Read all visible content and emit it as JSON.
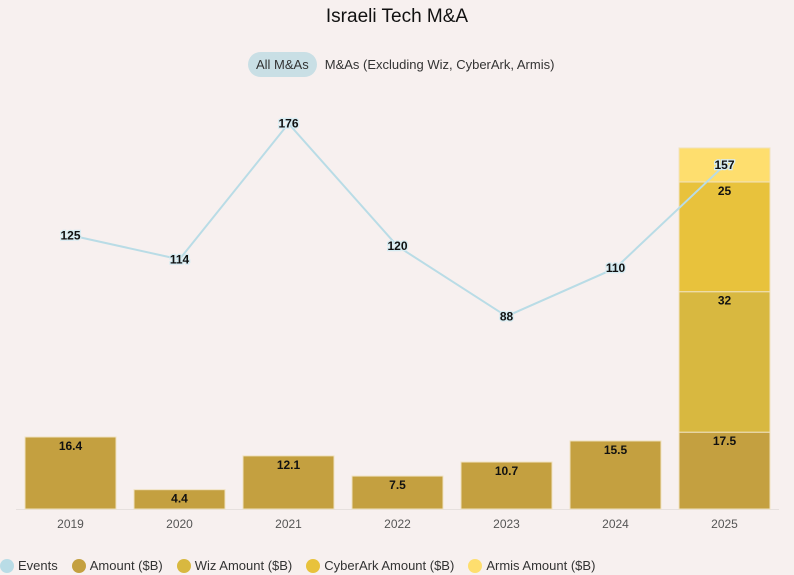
{
  "title": "Israeli Tech M&A",
  "toggle": {
    "options": [
      "All M&As",
      "M&As (Excluding Wiz, CyberArk, Armis)"
    ],
    "active": 0
  },
  "chart_data": {
    "type": "bar",
    "title": "Israeli Tech M&A",
    "categories": [
      "2019",
      "2020",
      "2021",
      "2022",
      "2023",
      "2024",
      "2025"
    ],
    "series": [
      {
        "name": "Amount ($B)",
        "type": "bar",
        "stack": true,
        "color": "#c4a040",
        "values": [
          16.4,
          4.4,
          12.1,
          7.5,
          10.7,
          15.5,
          17.5
        ],
        "labels": [
          "16.4",
          "4.4",
          "12.1",
          "7.5",
          "10.7",
          "15.5",
          "17.5"
        ]
      },
      {
        "name": "Wiz Amount ($B)",
        "type": "bar",
        "stack": true,
        "color": "#d8b840",
        "values": [
          0,
          0,
          0,
          0,
          0,
          0,
          32
        ],
        "labels": [
          "",
          "",
          "",
          "",
          "",
          "",
          "32"
        ]
      },
      {
        "name": "CyberArk Amount ($B)",
        "type": "bar",
        "stack": true,
        "color": "#e8c23c",
        "values": [
          0,
          0,
          0,
          0,
          0,
          0,
          25
        ],
        "labels": [
          "",
          "",
          "",
          "",
          "",
          "",
          "25"
        ]
      },
      {
        "name": "Armis Amount ($B)",
        "type": "bar",
        "stack": true,
        "color": "#fede6e",
        "values": [
          0,
          0,
          0,
          0,
          0,
          0,
          7.75
        ],
        "labels": [
          "",
          "",
          "",
          "",
          "",
          "",
          ""
        ]
      },
      {
        "name": "Events",
        "type": "line",
        "color": "#b9dce6",
        "values": [
          125,
          114,
          176,
          120,
          88,
          110,
          157
        ],
        "labels": [
          "125",
          "114",
          "176",
          "120",
          "88",
          "110",
          "157"
        ]
      }
    ],
    "xlabel": "",
    "ylabel": "",
    "grid": false,
    "legend": "bottom-left"
  },
  "legend": [
    {
      "label": "Events",
      "color": "#b9dce6"
    },
    {
      "label": "Amount ($B)",
      "color": "#c4a040"
    },
    {
      "label": "Wiz Amount ($B)",
      "color": "#d8b840"
    },
    {
      "label": "CyberArk Amount ($B)",
      "color": "#e8c23c"
    },
    {
      "label": "Armis Amount ($B)",
      "color": "#fede6e"
    }
  ]
}
